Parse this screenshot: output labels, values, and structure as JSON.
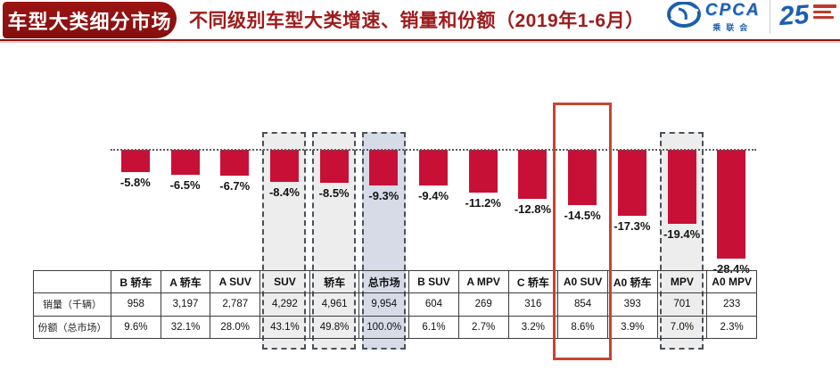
{
  "page": {
    "badge": "车型大类细分市场",
    "title": "不同级别车型大类增速、销量和份额（2019年1-6月）"
  },
  "logos": {
    "cpca_acronym": "CPCA",
    "cpca_name": "乘联会",
    "anniversary_mark": "25"
  },
  "colors": {
    "bar": "#c81036",
    "badge_bg": "#9b1412",
    "title_text": "#9e1b1b",
    "header_rule": "#8c1414",
    "dashed_fill": "#ededed",
    "total_fill": "#d6dbe7",
    "dashed_border": "#4b5158",
    "red_box_border": "#c54530",
    "logo_blue": "#1c5fae"
  },
  "chart_data": {
    "type": "bar",
    "title": "不同级别车型大类增速、销量和份额（2019年1-6月）",
    "categories": [
      "B 轿车",
      "A 轿车",
      "A SUV",
      "SUV",
      "轿车",
      "总市场",
      "B SUV",
      "A MPV",
      "C 轿车",
      "A0 SUV",
      "A0 轿车",
      "MPV",
      "A0 MPV"
    ],
    "series": [
      {
        "name": "增速（%）",
        "values": [
          -5.8,
          -6.5,
          -6.7,
          -8.4,
          -8.5,
          -9.3,
          -9.4,
          -11.2,
          -12.8,
          -14.5,
          -17.3,
          -19.4,
          -28.4
        ]
      },
      {
        "name": "销量（千辆）",
        "values": [
          958,
          3197,
          2787,
          4292,
          4961,
          9954,
          604,
          269,
          316,
          854,
          393,
          701,
          233
        ]
      },
      {
        "name": "份额（总市场）",
        "values": [
          9.6,
          32.1,
          28.0,
          43.1,
          49.8,
          100.0,
          6.1,
          2.7,
          3.2,
          8.6,
          3.9,
          7.0,
          2.3
        ]
      }
    ],
    "bar_labels": [
      "-5.8%",
      "-6.5%",
      "-6.7%",
      "-8.4%",
      "-8.5%",
      "-9.3%",
      "-9.4%",
      "-11.2%",
      "-12.8%",
      "-14.5%",
      "-17.3%",
      "-19.4%",
      "-28.4%"
    ],
    "ylim": [
      -30,
      0
    ],
    "grid": false,
    "baseline_style": "dotted",
    "legend": "none",
    "highlights": [
      {
        "category": "SUV",
        "index": 3,
        "style": "dashed"
      },
      {
        "category": "轿车",
        "index": 4,
        "style": "dashed"
      },
      {
        "category": "总市场",
        "index": 5,
        "style": "dashed-shaded"
      },
      {
        "category": "A0 SUV",
        "index": 9,
        "style": "red-solid"
      },
      {
        "category": "MPV",
        "index": 11,
        "style": "dashed"
      }
    ]
  },
  "table": {
    "corner": "",
    "columns": [
      "B 轿车",
      "A 轿车",
      "A SUV",
      "SUV",
      "轿车",
      "总市场",
      "B SUV",
      "A MPV",
      "C 轿车",
      "A0 SUV",
      "A0 轿车",
      "MPV",
      "A0 MPV"
    ],
    "rows": [
      {
        "label": "销量（千辆）",
        "cells": [
          "958",
          "3,197",
          "2,787",
          "4,292",
          "4,961",
          "9,954",
          "604",
          "269",
          "316",
          "854",
          "393",
          "701",
          "233"
        ]
      },
      {
        "label": "份额（总市场）",
        "cells": [
          "9.6%",
          "32.1%",
          "28.0%",
          "43.1%",
          "49.8%",
          "100.0%",
          "6.1%",
          "2.7%",
          "3.2%",
          "8.6%",
          "3.9%",
          "7.0%",
          "2.3%"
        ]
      }
    ]
  }
}
